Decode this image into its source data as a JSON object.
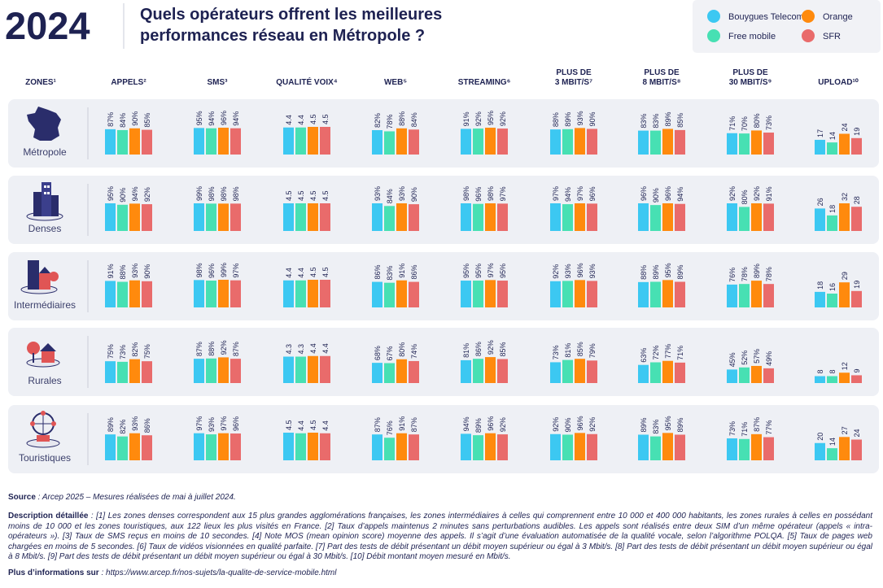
{
  "header": {
    "year": "2024",
    "title": [
      "Quels opérateurs offrent les meilleures",
      "performances réseau en Métropole ?"
    ]
  },
  "operators": [
    {
      "name": "Bouygues Telecom",
      "color": "#3cc8f2"
    },
    {
      "name": "Free mobile",
      "color": "#47e0b3"
    },
    {
      "name": "Orange",
      "color": "#ff8a0d"
    },
    {
      "name": "SFR",
      "color": "#e96b6b"
    }
  ],
  "zones_header": "ZONES¹",
  "columns": [
    [
      "APPELS²"
    ],
    [
      "SMS³"
    ],
    [
      "QUALITÉ VOIX⁴"
    ],
    [
      "WEB⁵"
    ],
    [
      "STREAMING⁶"
    ],
    [
      "PLUS DE",
      "3 MBIT/S⁷"
    ],
    [
      "PLUS DE",
      "8 MBIT/S⁸"
    ],
    [
      "PLUS DE",
      "30 MBIT/S⁹"
    ],
    [
      "UPLOAD¹⁰"
    ]
  ],
  "zones": [
    {
      "label": "Métropole",
      "cells": [
        {
          "values": [
            87,
            84,
            90,
            85
          ],
          "value_labels": [
            "87%",
            "84%",
            "90%",
            "85%"
          ]
        },
        {
          "values": [
            95,
            94,
            96,
            94
          ],
          "value_labels": [
            "95%",
            "94%",
            "96%",
            "94%"
          ]
        },
        {
          "values": [
            4.4,
            4.4,
            4.5,
            4.5
          ]
        },
        {
          "values": [
            82,
            78,
            88,
            84
          ],
          "value_labels": [
            "82%",
            "78%",
            "88%",
            "84%"
          ]
        },
        {
          "values": [
            91,
            92,
            95,
            92
          ],
          "value_labels": [
            "91%",
            "92%",
            "95%",
            "92%"
          ]
        },
        {
          "values": [
            88,
            89,
            93,
            90
          ],
          "value_labels": [
            "88%",
            "89%",
            "93%",
            "90%"
          ]
        },
        {
          "values": [
            83,
            83,
            89,
            85
          ],
          "value_labels": [
            "83%",
            "83%",
            "89%",
            "85%"
          ]
        },
        {
          "values": [
            71,
            70,
            80,
            73
          ],
          "value_labels": [
            "71%",
            "70%",
            "80%",
            "73%"
          ]
        },
        {
          "values": [
            17,
            14,
            24,
            19
          ]
        }
      ]
    },
    {
      "label": "Denses",
      "cells": [
        {
          "values": [
            95,
            90,
            94,
            92
          ],
          "value_labels": [
            "95%",
            "90%",
            "94%",
            "92%"
          ]
        },
        {
          "values": [
            99,
            98,
            98,
            98
          ],
          "value_labels": [
            "99%",
            "98%",
            "98%",
            "98%"
          ]
        },
        {
          "values": [
            4.5,
            4.5,
            4.5,
            4.5
          ]
        },
        {
          "values": [
            93,
            84,
            93,
            90
          ],
          "value_labels": [
            "93%",
            "84%",
            "93%",
            "90%"
          ]
        },
        {
          "values": [
            98,
            96,
            98,
            97
          ],
          "value_labels": [
            "98%",
            "96%",
            "98%",
            "97%"
          ]
        },
        {
          "values": [
            97,
            94,
            97,
            96
          ],
          "value_labels": [
            "97%",
            "94%",
            "97%",
            "96%"
          ]
        },
        {
          "values": [
            96,
            90,
            96,
            94
          ],
          "value_labels": [
            "96%",
            "90%",
            "96%",
            "94%"
          ]
        },
        {
          "values": [
            92,
            80,
            92,
            91
          ],
          "value_labels": [
            "92%",
            "80%",
            "92%",
            "91%"
          ]
        },
        {
          "values": [
            26,
            18,
            32,
            28
          ]
        }
      ]
    },
    {
      "label": "Intermédiaires",
      "cells": [
        {
          "values": [
            91,
            88,
            93,
            90
          ],
          "value_labels": [
            "91%",
            "88%",
            "93%",
            "90%"
          ]
        },
        {
          "values": [
            98,
            96,
            99,
            97
          ],
          "value_labels": [
            "98%",
            "96%",
            "99%",
            "97%"
          ]
        },
        {
          "values": [
            4.4,
            4.4,
            4.5,
            4.5
          ]
        },
        {
          "values": [
            86,
            83,
            91,
            86
          ],
          "value_labels": [
            "86%",
            "83%",
            "91%",
            "86%"
          ]
        },
        {
          "values": [
            95,
            95,
            97,
            95
          ],
          "value_labels": [
            "95%",
            "95%",
            "97%",
            "95%"
          ]
        },
        {
          "values": [
            92,
            93,
            96,
            93
          ],
          "value_labels": [
            "92%",
            "93%",
            "96%",
            "93%"
          ]
        },
        {
          "values": [
            88,
            89,
            95,
            89
          ],
          "value_labels": [
            "88%",
            "89%",
            "95%",
            "89%"
          ]
        },
        {
          "values": [
            76,
            78,
            89,
            78
          ],
          "value_labels": [
            "76%",
            "78%",
            "89%",
            "78%"
          ]
        },
        {
          "values": [
            18,
            16,
            29,
            19
          ]
        }
      ]
    },
    {
      "label": "Rurales",
      "cells": [
        {
          "values": [
            75,
            73,
            82,
            75
          ],
          "value_labels": [
            "75%",
            "73%",
            "82%",
            "75%"
          ]
        },
        {
          "values": [
            87,
            88,
            92,
            87
          ],
          "value_labels": [
            "87%",
            "88%",
            "92%",
            "87%"
          ]
        },
        {
          "values": [
            4.3,
            4.3,
            4.4,
            4.4
          ]
        },
        {
          "values": [
            68,
            67,
            80,
            74
          ],
          "value_labels": [
            "68%",
            "67%",
            "80%",
            "74%"
          ]
        },
        {
          "values": [
            81,
            86,
            92,
            85
          ],
          "value_labels": [
            "81%",
            "86%",
            "92%",
            "85%"
          ]
        },
        {
          "values": [
            73,
            81,
            85,
            79
          ],
          "value_labels": [
            "73%",
            "81%",
            "85%",
            "79%"
          ]
        },
        {
          "values": [
            63,
            72,
            77,
            71
          ],
          "value_labels": [
            "63%",
            "72%",
            "77%",
            "71%"
          ]
        },
        {
          "values": [
            45,
            52,
            57,
            49
          ],
          "value_labels": [
            "45%",
            "52%",
            "57%",
            "49%"
          ]
        },
        {
          "values": [
            8,
            8,
            12,
            9
          ]
        }
      ]
    },
    {
      "label": "Touristiques",
      "cells": [
        {
          "values": [
            89,
            82,
            93,
            86
          ],
          "value_labels": [
            "89%",
            "82%",
            "93%",
            "86%"
          ]
        },
        {
          "values": [
            97,
            93,
            97,
            96
          ],
          "value_labels": [
            "97%",
            "93%",
            "97%",
            "96%"
          ]
        },
        {
          "values": [
            4.5,
            4.4,
            4.5,
            4.4
          ]
        },
        {
          "values": [
            87,
            76,
            91,
            87
          ],
          "value_labels": [
            "87%",
            "76%",
            "91%",
            "87%"
          ]
        },
        {
          "values": [
            94,
            89,
            96,
            92
          ],
          "value_labels": [
            "94%",
            "89%",
            "96%",
            "92%"
          ]
        },
        {
          "values": [
            92,
            90,
            96,
            92
          ],
          "value_labels": [
            "92%",
            "90%",
            "96%",
            "92%"
          ]
        },
        {
          "values": [
            89,
            83,
            95,
            89
          ],
          "value_labels": [
            "89%",
            "83%",
            "95%",
            "89%"
          ]
        },
        {
          "values": [
            73,
            71,
            87,
            77
          ],
          "value_labels": [
            "73%",
            "71%",
            "87%",
            "77%"
          ]
        },
        {
          "values": [
            20,
            14,
            27,
            24
          ]
        }
      ]
    }
  ],
  "footer": {
    "source_label": "Source",
    "source_text": " : Arcep 2025 – Mesures réalisées de mai à juillet 2024.",
    "description_label": "Description détaillée",
    "description_text": " : [1] Les zones denses correspondent aux 15 plus grandes agglomérations françaises, les zones intermédiaires à celles qui comprennent entre 10 000 et 400 000 habitants, les zones rurales à celles en possédant moins de 10 000 et les zones touristiques, aux 122 lieux les plus visités en France. [2] Taux d’appels maintenus 2 minutes sans perturbations audibles. Les appels sont réalisés entre deux SIM d’un même opérateur (appels « intra-opérateurs »). [3] Taux de SMS reçus en moins de 10 secondes. [4] Note MOS (mean opinion score) moyenne des appels. Il s’agit d’une évaluation automatisée de la qualité vocale, selon l’algorithme POLQA. [5] Taux de pages web chargées en moins de 5 secondes. [6] Taux de vidéos visionnées en qualité parfaite. [7] Part des tests de débit présentant un débit moyen supérieur ou égal à 3 Mbit/s. [8] Part des tests de débit présentant un débit moyen supérieur ou égal à 8 Mbit/s. [9] Part des tests de débit présentant un débit moyen supérieur ou égal à 30 Mbit/s. [10] Débit montant moyen mesuré en Mbit/s.",
    "more_label": "Plus d’informations sur",
    "more_url": " : https://www.arcep.fr/nos-sujets/la-qualite-de-service-mobile.html"
  }
}
